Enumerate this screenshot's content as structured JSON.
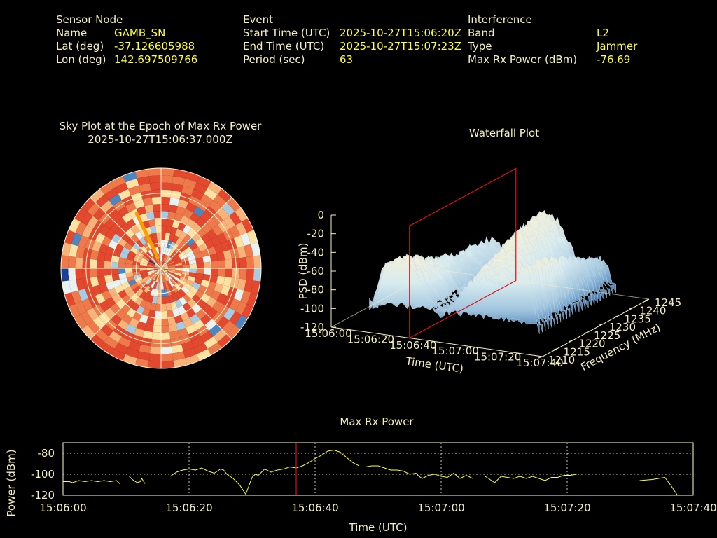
{
  "header": {
    "sensor": {
      "title": "Sensor Node",
      "rows": [
        {
          "label": "Name",
          "value": "GAMB_SN"
        },
        {
          "label": "Lat (deg)",
          "value": "-37.126605988"
        },
        {
          "label": "Lon (deg)",
          "value": "142.697509766"
        }
      ]
    },
    "event": {
      "title": "Event",
      "rows": [
        {
          "label": "Start Time (UTC)",
          "value": "2025-10-27T15:06:20Z"
        },
        {
          "label": "End Time (UTC)",
          "value": "2025-10-27T15:07:23Z"
        },
        {
          "label": "Period (sec)",
          "value": "63"
        }
      ]
    },
    "interference": {
      "title": "Interference",
      "rows": [
        {
          "label": "Band",
          "value": "L2"
        },
        {
          "label": "Type",
          "value": "Jammer"
        },
        {
          "label": "Max Rx Power (dBm)",
          "value": "-76.69"
        }
      ]
    }
  },
  "colors": {
    "text": "#f5efc0",
    "value": "#ffff33",
    "marker": "#dd1111",
    "line": "#ffff33",
    "sky_palette": [
      "#e2492f",
      "#ee7a4b",
      "#f7b37a",
      "#fde2a3",
      "#e8f2f1",
      "#a8cbe2",
      "#4e86c0",
      "#1c3f94"
    ]
  },
  "chart_data": [
    {
      "type": "heatmap",
      "subtype": "polar-sky-plot",
      "title": "Sky Plot at the Epoch of Max Rx Power",
      "subtitle": "2025-10-27T15:06:37.000Z",
      "rings": 4,
      "track": {
        "azimuth_deg": [
          343,
          336
        ],
        "elevation_deg": [
          80,
          36
        ]
      }
    },
    {
      "type": "area",
      "subtype": "3d-waterfall",
      "title": "Waterfall Plot",
      "zlabel": "PSD (dBm)",
      "xlabel": "Time (UTC)",
      "ylabel": "Frequency (MHz)",
      "z_ticks": [
        "0",
        "-20",
        "-40",
        "-60",
        "-80",
        "-100",
        "-120"
      ],
      "x_ticks": [
        "15:06:00",
        "15:06:20",
        "15:06:40",
        "15:07:00",
        "15:07:20",
        "15:07:40"
      ],
      "y_ticks": [
        "1210",
        "1215",
        "1220",
        "1225",
        "1230",
        "1235",
        "1240",
        "1245"
      ],
      "zlim": [
        -120,
        0
      ],
      "ylim": [
        1210,
        1245
      ],
      "marker_time": "15:06:37"
    },
    {
      "type": "line",
      "title": "Max Rx Power",
      "xlabel": "Time (UTC)",
      "ylabel": "Power (dBm)",
      "x_ticks": [
        "15:06:00",
        "15:06:20",
        "15:06:40",
        "15:07:00",
        "15:07:20",
        "15:07:40"
      ],
      "y_ticks": [
        "-80",
        "-100",
        "-120"
      ],
      "xlim_sec": [
        0,
        100
      ],
      "ylim": [
        -120,
        -70
      ],
      "grid": true,
      "marker_sec": 37,
      "segments": [
        {
          "t": [
            0,
            2,
            3,
            5,
            7,
            9,
            11,
            13,
            15,
            17,
            18
          ],
          "v": [
            -107,
            -107,
            -108,
            -106,
            -107,
            -106,
            -107,
            -106,
            -107,
            -106,
            -109
          ]
        },
        {
          "t": [
            21,
            22,
            23.5,
            24.5,
            25,
            26
          ],
          "v": [
            -102,
            -105,
            -108,
            -107,
            -104,
            -109
          ]
        },
        {
          "t": [
            34,
            35,
            36,
            38,
            40,
            42,
            44,
            46,
            48,
            50,
            51,
            52,
            54,
            56,
            58,
            60,
            61,
            62,
            64,
            66,
            68,
            70,
            72,
            74,
            76,
            78,
            80,
            82,
            84,
            86,
            88,
            90,
            92,
            94
          ],
          "v": [
            -102,
            -100,
            -98,
            -96,
            -95,
            -96,
            -94,
            -97,
            -99,
            -95,
            -96,
            -100,
            -104,
            -110,
            -119,
            -103,
            -100,
            -101,
            -95,
            -98,
            -96,
            -95,
            -93,
            -94,
            -92,
            -89,
            -85,
            -82,
            -78,
            -77,
            -79,
            -84,
            -89,
            -92
          ]
        },
        {
          "t": [
            96,
            98,
            100,
            102,
            104,
            106,
            108,
            110,
            112,
            113,
            114,
            116,
            118,
            120,
            122,
            124,
            126,
            128,
            130
          ],
          "v": [
            -93,
            -92,
            -92,
            -94,
            -96,
            -96,
            -97,
            -100,
            -99,
            -102,
            -104,
            -101,
            -100,
            -102,
            -103,
            -99,
            -104,
            -101,
            -104
          ]
        },
        {
          "t": [
            134,
            135,
            137,
            139,
            141,
            143,
            145,
            147,
            149,
            151,
            153,
            155,
            157,
            159,
            161,
            163
          ],
          "v": [
            -102,
            -104,
            -108,
            -102,
            -103,
            -104,
            -102,
            -104,
            -102,
            -104,
            -106,
            -103,
            -103,
            -101,
            -101,
            -100
          ]
        },
        {
          "t": [
            183,
            187,
            191,
            193,
            195
          ],
          "v": [
            -106,
            -105,
            -103,
            -111,
            -120
          ]
        }
      ]
    }
  ]
}
